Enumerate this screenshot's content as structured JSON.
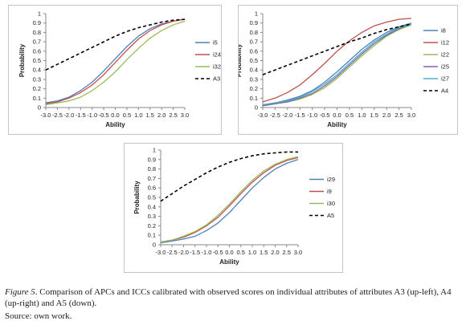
{
  "chart_data": [
    {
      "type": "line",
      "xlabel": "Ability",
      "ylabel": "Probability",
      "x": [
        -3.0,
        -2.5,
        -2.0,
        -1.5,
        -1.0,
        -0.5,
        0.0,
        0.5,
        1.0,
        1.5,
        2.0,
        2.5,
        3.0
      ],
      "xticks": [
        "-3.0",
        "-2.5",
        "-2.0",
        "-1.5",
        "-1.0",
        "-0.5",
        "0.0",
        "0.5",
        "1.0",
        "1.5",
        "2.0",
        "2.5",
        "3.0"
      ],
      "ylim": [
        0,
        1
      ],
      "yticks": [
        "0",
        "0.1",
        "0.2",
        "0.3",
        "0.4",
        "0.5",
        "0.6",
        "0.7",
        "0.8",
        "0.9",
        "1"
      ],
      "legend_position": "right",
      "series": [
        {
          "name": "i5",
          "color": "#4f81bd",
          "dash": false,
          "values": [
            0.05,
            0.07,
            0.11,
            0.18,
            0.27,
            0.39,
            0.52,
            0.65,
            0.76,
            0.84,
            0.89,
            0.92,
            0.94
          ]
        },
        {
          "name": "i24",
          "color": "#c0504d",
          "dash": false,
          "values": [
            0.04,
            0.06,
            0.1,
            0.16,
            0.24,
            0.35,
            0.48,
            0.61,
            0.73,
            0.82,
            0.88,
            0.92,
            0.94
          ]
        },
        {
          "name": "i32",
          "color": "#9bbb59",
          "dash": false,
          "values": [
            0.03,
            0.05,
            0.07,
            0.11,
            0.18,
            0.27,
            0.38,
            0.51,
            0.63,
            0.74,
            0.82,
            0.88,
            0.92
          ]
        },
        {
          "name": "A3",
          "color": "#000000",
          "dash": true,
          "values": [
            0.4,
            0.46,
            0.52,
            0.58,
            0.64,
            0.7,
            0.76,
            0.81,
            0.85,
            0.88,
            0.91,
            0.93,
            0.94
          ]
        }
      ]
    },
    {
      "type": "line",
      "xlabel": "Ability",
      "ylabel": "Probability",
      "x": [
        -3.0,
        -2.5,
        -2.0,
        -1.5,
        -1.0,
        -0.5,
        0.0,
        0.5,
        1.0,
        1.5,
        2.0,
        2.5,
        3.0
      ],
      "xticks": [
        "-3.0",
        "-2.5",
        "-2.0",
        "-1.5",
        "-1.0",
        "-0.5",
        "0.0",
        "0.5",
        "1.0",
        "1.5",
        "2.0",
        "2.5",
        "3.0"
      ],
      "ylim": [
        0,
        1
      ],
      "yticks": [
        "0",
        "0.1",
        "0.2",
        "0.3",
        "0.4",
        "0.5",
        "0.6",
        "0.7",
        "0.8",
        "0.9",
        "1"
      ],
      "legend_position": "right",
      "series": [
        {
          "name": "i8",
          "color": "#4f81bd",
          "dash": false,
          "values": [
            0.03,
            0.05,
            0.08,
            0.12,
            0.18,
            0.27,
            0.38,
            0.5,
            0.62,
            0.72,
            0.8,
            0.86,
            0.9
          ]
        },
        {
          "name": "i12",
          "color": "#c0504d",
          "dash": false,
          "values": [
            0.06,
            0.1,
            0.16,
            0.24,
            0.35,
            0.47,
            0.6,
            0.71,
            0.8,
            0.87,
            0.91,
            0.94,
            0.95
          ]
        },
        {
          "name": "i22",
          "color": "#9bbb59",
          "dash": false,
          "values": [
            0.02,
            0.04,
            0.06,
            0.09,
            0.14,
            0.21,
            0.31,
            0.43,
            0.55,
            0.66,
            0.76,
            0.83,
            0.88
          ]
        },
        {
          "name": "i25",
          "color": "#8064a2",
          "dash": false,
          "values": [
            0.02,
            0.04,
            0.06,
            0.1,
            0.15,
            0.23,
            0.33,
            0.45,
            0.57,
            0.68,
            0.77,
            0.84,
            0.89
          ]
        },
        {
          "name": "i27",
          "color": "#4bacc6",
          "dash": false,
          "values": [
            0.03,
            0.05,
            0.07,
            0.11,
            0.17,
            0.25,
            0.35,
            0.47,
            0.59,
            0.7,
            0.78,
            0.85,
            0.89
          ]
        },
        {
          "name": "A4",
          "color": "#000000",
          "dash": true,
          "values": [
            0.35,
            0.4,
            0.45,
            0.5,
            0.55,
            0.6,
            0.65,
            0.7,
            0.74,
            0.79,
            0.83,
            0.86,
            0.89
          ]
        }
      ]
    },
    {
      "type": "line",
      "xlabel": "Ability",
      "ylabel": "Probability",
      "x": [
        -3.0,
        -2.5,
        -2.0,
        -1.5,
        -1.0,
        -0.5,
        0.0,
        0.5,
        1.0,
        1.5,
        2.0,
        2.5,
        3.0
      ],
      "xticks": [
        "-3.0",
        "-2.5",
        "-2.0",
        "-1.5",
        "-1.0",
        "-0.5",
        "0.0",
        "0.5",
        "1.0",
        "1.5",
        "2.0",
        "2.5",
        "3.0"
      ],
      "ylim": [
        0,
        1
      ],
      "yticks": [
        "0",
        "0.1",
        "0.2",
        "0.3",
        "0.4",
        "0.5",
        "0.6",
        "0.7",
        "0.8",
        "0.9",
        "1"
      ],
      "legend_position": "right",
      "series": [
        {
          "name": "i29",
          "color": "#4f81bd",
          "dash": false,
          "values": [
            0.02,
            0.04,
            0.06,
            0.09,
            0.15,
            0.23,
            0.34,
            0.47,
            0.6,
            0.71,
            0.8,
            0.86,
            0.9
          ]
        },
        {
          "name": "i9",
          "color": "#c0504d",
          "dash": false,
          "values": [
            0.03,
            0.05,
            0.08,
            0.13,
            0.2,
            0.29,
            0.41,
            0.54,
            0.66,
            0.76,
            0.84,
            0.89,
            0.92
          ]
        },
        {
          "name": "i30",
          "color": "#9bbb59",
          "dash": false,
          "values": [
            0.03,
            0.05,
            0.09,
            0.14,
            0.21,
            0.31,
            0.43,
            0.56,
            0.68,
            0.78,
            0.85,
            0.9,
            0.93
          ]
        },
        {
          "name": "A5",
          "color": "#000000",
          "dash": true,
          "values": [
            0.46,
            0.54,
            0.62,
            0.69,
            0.76,
            0.82,
            0.87,
            0.91,
            0.94,
            0.96,
            0.97,
            0.98,
            0.98
          ]
        }
      ]
    }
  ],
  "caption": {
    "label": "Figure 5",
    "text": ". Comparison of APCs and ICCs calibrated with observed scores on individual attributes of attributes A3 (up-left), A4 (up-right) and A5 (down)."
  },
  "source": "Source: own work."
}
